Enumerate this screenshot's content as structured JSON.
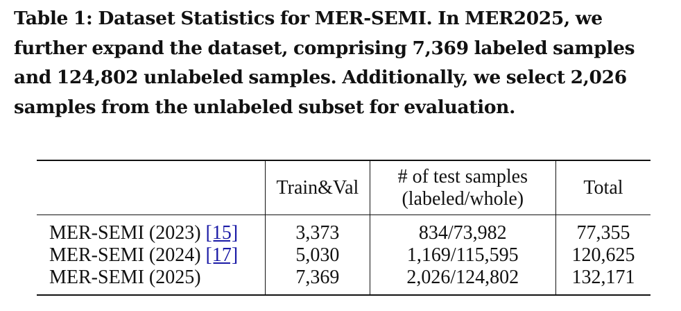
{
  "caption": "Table 1: Dataset Statistics for MER-SEMI. In MER2025, we further expand the dataset, comprising 7,369 labeled samples and 124,802 unlabeled samples. Additionally, we select 2,026 samples from the unlabeled subset for evaluation.",
  "table": {
    "headers": {
      "col0": "",
      "col1": "Train&Val",
      "col2_line1": "# of test samples",
      "col2_line2": "(labeled/whole)",
      "col3": "Total"
    },
    "rows": [
      {
        "name": "MER-SEMI (2023)",
        "cite": "[15]",
        "train_val": "3,373",
        "test": "834/73,982",
        "total": "77,355"
      },
      {
        "name": "MER-SEMI (2024)",
        "cite": "[17]",
        "train_val": "5,030",
        "test": "1,169/115,595",
        "total": "120,625"
      },
      {
        "name": "MER-SEMI (2025)",
        "cite": "",
        "train_val": "7,369",
        "test": "2,026/124,802",
        "total": "132,171"
      }
    ]
  }
}
